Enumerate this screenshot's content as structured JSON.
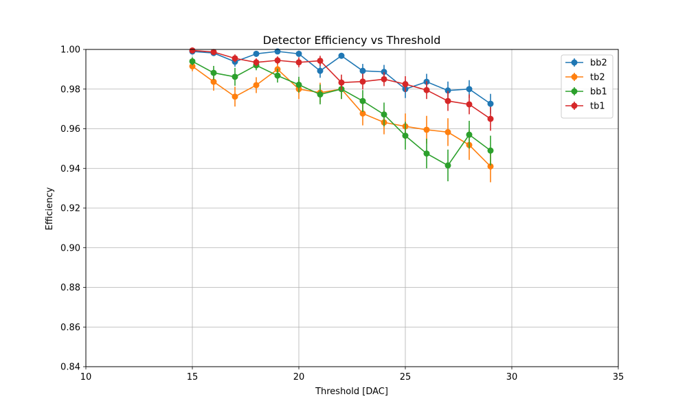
{
  "chart_data": {
    "type": "line",
    "title": "Detector Efficiency vs Threshold",
    "xlabel": "Threshold [DAC]",
    "ylabel": "Efficiency",
    "xlim": [
      10,
      35
    ],
    "ylim": [
      0.84,
      1.0
    ],
    "xticks": [
      "10",
      "15",
      "20",
      "25",
      "30",
      "35"
    ],
    "yticks": [
      "0.84",
      "0.86",
      "0.88",
      "0.90",
      "0.92",
      "0.94",
      "0.96",
      "0.98",
      "1.00"
    ],
    "grid": true,
    "legend_position": "top-right",
    "x": [
      15,
      16,
      17,
      18,
      19,
      20,
      21,
      22,
      23,
      24,
      25,
      26,
      27,
      28,
      29
    ],
    "series": [
      {
        "name": "bb2",
        "color": "#1f77b4",
        "values": [
          0.999,
          0.9982,
          0.9938,
          0.9978,
          0.999,
          0.9978,
          0.9892,
          0.9968,
          0.9892,
          0.9887,
          0.98,
          0.9837,
          0.9793,
          0.98,
          0.9726
        ],
        "errors": [
          0.0015,
          0.0015,
          0.0025,
          0.0015,
          0.0012,
          0.0015,
          0.0035,
          0.0015,
          0.0035,
          0.0035,
          0.0045,
          0.004,
          0.0045,
          0.0045,
          0.005
        ]
      },
      {
        "name": "tb2",
        "color": "#ff7f0e",
        "values": [
          0.9915,
          0.9837,
          0.9762,
          0.982,
          0.99,
          0.98,
          0.9782,
          0.98,
          0.9677,
          0.9632,
          0.9612,
          0.9595,
          0.9583,
          0.9518,
          0.941
        ],
        "errors": [
          0.0025,
          0.0045,
          0.005,
          0.004,
          0.003,
          0.005,
          0.005,
          0.005,
          0.006,
          0.006,
          0.0065,
          0.007,
          0.007,
          0.0075,
          0.008
        ]
      },
      {
        "name": "bb1",
        "color": "#2ca02c",
        "values": [
          0.994,
          0.9882,
          0.9862,
          0.992,
          0.9868,
          0.9822,
          0.9773,
          0.98,
          0.974,
          0.9672,
          0.9565,
          0.9475,
          0.9415,
          0.957,
          0.949
        ],
        "errors": [
          0.002,
          0.0035,
          0.0045,
          0.0025,
          0.0035,
          0.004,
          0.005,
          0.005,
          0.0055,
          0.006,
          0.007,
          0.0075,
          0.008,
          0.007,
          0.0075
        ]
      },
      {
        "name": "tb1",
        "color": "#d62728",
        "values": [
          0.9995,
          0.9987,
          0.9955,
          0.9935,
          0.9945,
          0.9935,
          0.9943,
          0.9833,
          0.9838,
          0.985,
          0.9825,
          0.9795,
          0.974,
          0.9723,
          0.965
        ],
        "errors": [
          0.0008,
          0.001,
          0.002,
          0.002,
          0.002,
          0.0025,
          0.0025,
          0.004,
          0.004,
          0.0035,
          0.004,
          0.0045,
          0.005,
          0.005,
          0.006
        ]
      }
    ]
  }
}
